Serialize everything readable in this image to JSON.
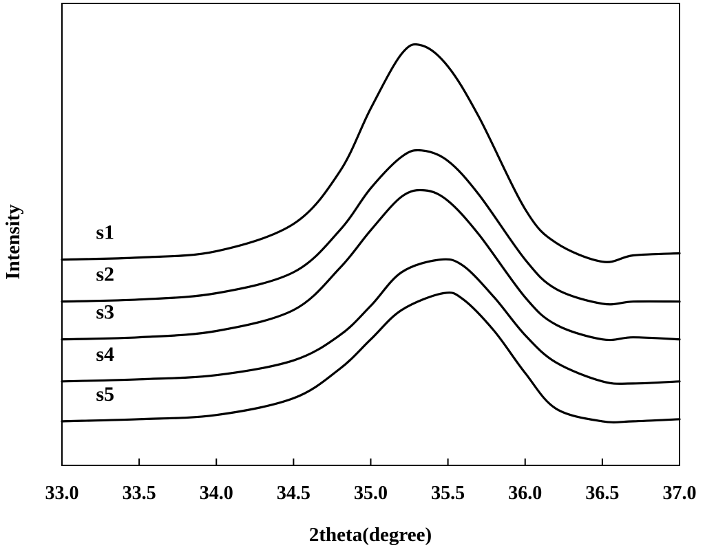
{
  "chart_data": {
    "type": "line",
    "title": "",
    "xlabel": "2theta(degree)",
    "ylabel": "Intensity",
    "xlim": [
      33.0,
      37.0
    ],
    "ylim": [
      0,
      1.1
    ],
    "x_ticks": [
      "33.0",
      "33.5",
      "34.0",
      "34.5",
      "35.0",
      "35.5",
      "36.0",
      "36.5",
      "37.0"
    ],
    "y_ticks_shown": false,
    "grid": false,
    "legend": "inline labels at left",
    "series": [
      {
        "name": "s1",
        "x": [
          33.0,
          33.5,
          34.0,
          34.5,
          34.8,
          35.0,
          35.2,
          35.33,
          35.5,
          35.7,
          36.0,
          36.2,
          36.5,
          36.7,
          37.0
        ],
        "y": [
          0.49,
          0.495,
          0.51,
          0.575,
          0.7,
          0.85,
          0.98,
          1.0,
          0.95,
          0.83,
          0.61,
          0.53,
          0.485,
          0.5,
          0.505
        ]
      },
      {
        "name": "s2",
        "x": [
          33.0,
          33.5,
          34.0,
          34.5,
          34.8,
          35.0,
          35.2,
          35.33,
          35.5,
          35.7,
          36.0,
          36.2,
          36.5,
          36.7,
          37.0
        ],
        "y": [
          0.39,
          0.395,
          0.41,
          0.46,
          0.56,
          0.66,
          0.735,
          0.75,
          0.725,
          0.645,
          0.49,
          0.42,
          0.385,
          0.39,
          0.39
        ]
      },
      {
        "name": "s3",
        "x": [
          33.0,
          33.5,
          34.0,
          34.5,
          34.8,
          35.0,
          35.2,
          35.35,
          35.5,
          35.7,
          36.0,
          36.2,
          36.5,
          36.7,
          37.0
        ],
        "y": [
          0.3,
          0.305,
          0.32,
          0.37,
          0.47,
          0.56,
          0.64,
          0.655,
          0.63,
          0.55,
          0.4,
          0.335,
          0.3,
          0.305,
          0.3
        ]
      },
      {
        "name": "s4",
        "x": [
          33.0,
          33.5,
          34.0,
          34.5,
          34.8,
          35.0,
          35.2,
          35.45,
          35.6,
          35.8,
          36.0,
          36.2,
          36.5,
          36.7,
          37.0
        ],
        "y": [
          0.2,
          0.205,
          0.215,
          0.25,
          0.31,
          0.38,
          0.46,
          0.49,
          0.475,
          0.4,
          0.31,
          0.245,
          0.2,
          0.195,
          0.2
        ]
      },
      {
        "name": "s5",
        "x": [
          33.0,
          33.5,
          34.0,
          34.5,
          34.8,
          35.0,
          35.2,
          35.47,
          35.6,
          35.8,
          36.0,
          36.2,
          36.5,
          36.7,
          37.0
        ],
        "y": [
          0.105,
          0.11,
          0.12,
          0.16,
          0.23,
          0.3,
          0.37,
          0.41,
          0.395,
          0.32,
          0.22,
          0.135,
          0.105,
          0.105,
          0.11
        ]
      }
    ]
  }
}
